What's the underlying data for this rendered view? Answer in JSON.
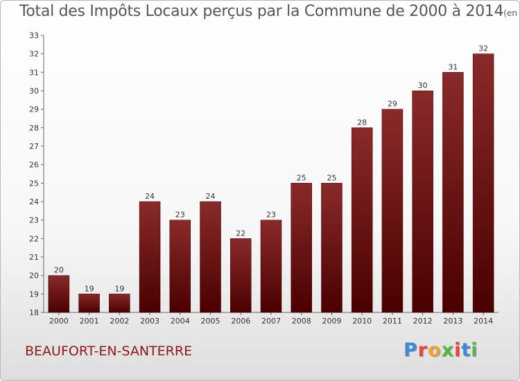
{
  "title": "Total des Impôts Locaux perçus par la Commune de 2000 à 2014",
  "title_unit": "(en milliers d'€)",
  "commune": "BEAUFORT-EN-SANTERRE",
  "logo": {
    "letters": [
      "P",
      "r",
      "o",
      "x",
      "i",
      "t",
      "i"
    ],
    "colors": [
      "#3a8ad6",
      "#e8463c",
      "#f2a22b",
      "#58b441",
      "#e8463c",
      "#3a8ad6",
      "#58b441"
    ]
  },
  "chart_data": {
    "type": "bar",
    "title": "Total des Impôts Locaux perçus par la Commune de 2000 à 2014",
    "xlabel": "",
    "ylabel": "",
    "categories": [
      "2000",
      "2001",
      "2002",
      "2003",
      "2004",
      "2005",
      "2006",
      "2007",
      "2008",
      "2009",
      "2010",
      "2011",
      "2012",
      "2013",
      "2014"
    ],
    "values": [
      20,
      19,
      19,
      24,
      23,
      24,
      22,
      23,
      25,
      25,
      28,
      29,
      30,
      31,
      32
    ],
    "ylim": [
      18,
      33
    ],
    "yticks": [
      18,
      19,
      20,
      21,
      22,
      23,
      24,
      25,
      26,
      27,
      28,
      29,
      30,
      31,
      32,
      33
    ],
    "bar_color": "#7a1a1a",
    "grid": false
  }
}
